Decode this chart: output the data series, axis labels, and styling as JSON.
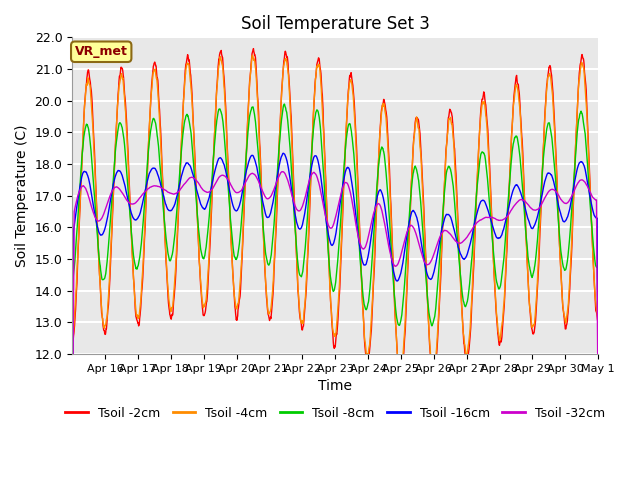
{
  "title": "Soil Temperature Set 3",
  "xlabel": "Time",
  "ylabel": "Soil Temperature (C)",
  "ylim": [
    12.0,
    22.0
  ],
  "yticks": [
    12.0,
    13.0,
    14.0,
    15.0,
    16.0,
    17.0,
    18.0,
    19.0,
    20.0,
    21.0,
    22.0
  ],
  "x_labels": [
    "Apr 16",
    "Apr 17",
    "Apr 18",
    "Apr 19",
    "Apr 20",
    "Apr 21",
    "Apr 22",
    "Apr 23",
    "Apr 24",
    "Apr 25",
    "Apr 26",
    "Apr 27",
    "Apr 28",
    "Apr 29",
    "Apr 30",
    "May 1"
  ],
  "series_colors": [
    "#ff0000",
    "#ff8c00",
    "#00cc00",
    "#0000ff",
    "#cc00cc"
  ],
  "series_labels": [
    "Tsoil -2cm",
    "Tsoil -4cm",
    "Tsoil -8cm",
    "Tsoil -16cm",
    "Tsoil -32cm"
  ],
  "annotation_text": "VR_met",
  "annotation_fg": "#8b0000",
  "annotation_bg": "#ffff99",
  "annotation_border": "#8b6914",
  "background_color": "#e8e8e8",
  "plot_bg": "#e8e8e8",
  "grid_color": "white",
  "title_fontsize": 12,
  "n_days": 16
}
